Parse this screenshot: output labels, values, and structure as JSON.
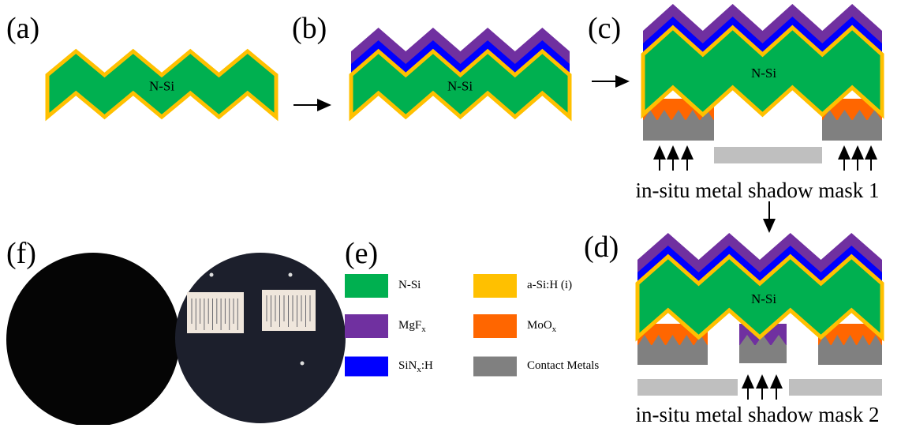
{
  "panels": {
    "a": {
      "label": "(a)",
      "body": "N-Si"
    },
    "b": {
      "label": "(b)",
      "body": "N-Si"
    },
    "c": {
      "label": "(c)",
      "body": "N-Si"
    },
    "d": {
      "label": "(d)",
      "body": "N-Si"
    },
    "e": {
      "label": "(e)"
    },
    "f": {
      "label": "(f)"
    }
  },
  "legend": [
    {
      "base": "N-Si",
      "color": "#00b050"
    },
    {
      "base": "a-Si:H (i)",
      "color": "#ffc000"
    },
    {
      "base": "MgF",
      "sub": "x",
      "color": "#7030a0"
    },
    {
      "base": "MoO",
      "sub": "x",
      "color": "#ff6600"
    },
    {
      "base": "SiN",
      "sub": "x",
      "tail": ":H",
      "color": "#0000ff"
    },
    {
      "base": "Contact Metals",
      "color": "#808080"
    }
  ],
  "masks": [
    "in-situ metal shadow mask 1",
    "in-situ metal shadow mask 2"
  ]
}
